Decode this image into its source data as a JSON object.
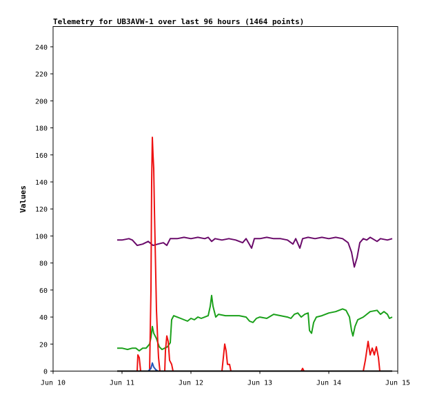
{
  "chart_data": {
    "type": "line",
    "title": "Telemetry for UB3AVW-1 over last 96 hours (1464 points)",
    "xlabel": "",
    "ylabel": "Values",
    "xlim": [
      10.0,
      15.0
    ],
    "ylim": [
      0,
      255
    ],
    "x_ticks": [
      {
        "value": 10,
        "label": "Jun 10"
      },
      {
        "value": 11,
        "label": "Jun 11"
      },
      {
        "value": 12,
        "label": "Jun 12"
      },
      {
        "value": 13,
        "label": "Jun 13"
      },
      {
        "value": 14,
        "label": "Jun 14"
      },
      {
        "value": 15,
        "label": "Jun 15"
      }
    ],
    "y_ticks": [
      0,
      20,
      40,
      60,
      80,
      100,
      120,
      140,
      160,
      180,
      200,
      220,
      240
    ],
    "grid": false,
    "series": [
      {
        "color": "#6a0a6a",
        "points": [
          [
            10.93,
            97
          ],
          [
            11.0,
            97
          ],
          [
            11.1,
            98
          ],
          [
            11.15,
            97
          ],
          [
            11.22,
            93
          ],
          [
            11.3,
            94
          ],
          [
            11.38,
            96
          ],
          [
            11.45,
            93
          ],
          [
            11.52,
            94
          ],
          [
            11.6,
            95
          ],
          [
            11.65,
            93
          ],
          [
            11.7,
            98
          ],
          [
            11.8,
            98
          ],
          [
            11.9,
            99
          ],
          [
            12.0,
            98
          ],
          [
            12.1,
            99
          ],
          [
            12.2,
            98
          ],
          [
            12.25,
            99
          ],
          [
            12.3,
            96
          ],
          [
            12.35,
            98
          ],
          [
            12.45,
            97
          ],
          [
            12.55,
            98
          ],
          [
            12.65,
            97
          ],
          [
            12.75,
            95
          ],
          [
            12.8,
            98
          ],
          [
            12.88,
            91
          ],
          [
            12.92,
            98
          ],
          [
            13.0,
            98
          ],
          [
            13.1,
            99
          ],
          [
            13.2,
            98
          ],
          [
            13.3,
            98
          ],
          [
            13.4,
            97
          ],
          [
            13.48,
            94
          ],
          [
            13.52,
            98
          ],
          [
            13.58,
            91
          ],
          [
            13.62,
            98
          ],
          [
            13.7,
            99
          ],
          [
            13.8,
            98
          ],
          [
            13.9,
            99
          ],
          [
            14.0,
            98
          ],
          [
            14.1,
            99
          ],
          [
            14.2,
            98
          ],
          [
            14.28,
            95
          ],
          [
            14.33,
            88
          ],
          [
            14.37,
            77
          ],
          [
            14.41,
            84
          ],
          [
            14.45,
            95
          ],
          [
            14.5,
            98
          ],
          [
            14.55,
            97
          ],
          [
            14.6,
            99
          ],
          [
            14.7,
            96
          ],
          [
            14.75,
            98
          ],
          [
            14.85,
            97
          ],
          [
            14.92,
            98
          ]
        ]
      },
      {
        "color": "#1aa01a",
        "points": [
          [
            10.93,
            17
          ],
          [
            11.0,
            17
          ],
          [
            11.08,
            16
          ],
          [
            11.15,
            17
          ],
          [
            11.2,
            17
          ],
          [
            11.25,
            15
          ],
          [
            11.3,
            17
          ],
          [
            11.35,
            17
          ],
          [
            11.4,
            20
          ],
          [
            11.42,
            25
          ],
          [
            11.44,
            33
          ],
          [
            11.46,
            28
          ],
          [
            11.5,
            24
          ],
          [
            11.54,
            18
          ],
          [
            11.58,
            16
          ],
          [
            11.62,
            17
          ],
          [
            11.66,
            18
          ],
          [
            11.7,
            21
          ],
          [
            11.72,
            38
          ],
          [
            11.75,
            41
          ],
          [
            11.8,
            40
          ],
          [
            11.85,
            39
          ],
          [
            11.9,
            38
          ],
          [
            11.95,
            37
          ],
          [
            12.0,
            39
          ],
          [
            12.05,
            38
          ],
          [
            12.1,
            40
          ],
          [
            12.15,
            39
          ],
          [
            12.2,
            40
          ],
          [
            12.25,
            41
          ],
          [
            12.28,
            48
          ],
          [
            12.3,
            56
          ],
          [
            12.32,
            48
          ],
          [
            12.36,
            40
          ],
          [
            12.4,
            42
          ],
          [
            12.5,
            41
          ],
          [
            12.6,
            41
          ],
          [
            12.7,
            41
          ],
          [
            12.8,
            40
          ],
          [
            12.85,
            37
          ],
          [
            12.9,
            36
          ],
          [
            12.95,
            39
          ],
          [
            13.0,
            40
          ],
          [
            13.1,
            39
          ],
          [
            13.2,
            42
          ],
          [
            13.3,
            41
          ],
          [
            13.4,
            40
          ],
          [
            13.45,
            39
          ],
          [
            13.5,
            42
          ],
          [
            13.55,
            43
          ],
          [
            13.6,
            40
          ],
          [
            13.65,
            42
          ],
          [
            13.7,
            43
          ],
          [
            13.72,
            30
          ],
          [
            13.75,
            28
          ],
          [
            13.78,
            36
          ],
          [
            13.82,
            40
          ],
          [
            13.9,
            41
          ],
          [
            14.0,
            43
          ],
          [
            14.1,
            44
          ],
          [
            14.2,
            46
          ],
          [
            14.25,
            45
          ],
          [
            14.3,
            40
          ],
          [
            14.33,
            30
          ],
          [
            14.35,
            26
          ],
          [
            14.38,
            33
          ],
          [
            14.42,
            38
          ],
          [
            14.5,
            40
          ],
          [
            14.6,
            44
          ],
          [
            14.7,
            45
          ],
          [
            14.75,
            42
          ],
          [
            14.8,
            44
          ],
          [
            14.85,
            42
          ],
          [
            14.88,
            39
          ],
          [
            14.92,
            40
          ]
        ]
      },
      {
        "color": "#ee1111",
        "points": [
          [
            10.93,
            0
          ],
          [
            11.22,
            0
          ],
          [
            11.23,
            12
          ],
          [
            11.25,
            10
          ],
          [
            11.27,
            0
          ],
          [
            11.4,
            0
          ],
          [
            11.42,
            60
          ],
          [
            11.43,
            140
          ],
          [
            11.44,
            173
          ],
          [
            11.45,
            160
          ],
          [
            11.46,
            150
          ],
          [
            11.47,
            120
          ],
          [
            11.48,
            95
          ],
          [
            11.5,
            45
          ],
          [
            11.52,
            20
          ],
          [
            11.53,
            10
          ],
          [
            11.55,
            0
          ],
          [
            11.62,
            0
          ],
          [
            11.63,
            15
          ],
          [
            11.65,
            26
          ],
          [
            11.67,
            22
          ],
          [
            11.69,
            8
          ],
          [
            11.72,
            5
          ],
          [
            11.74,
            0
          ],
          [
            12.45,
            0
          ],
          [
            12.47,
            10
          ],
          [
            12.49,
            20
          ],
          [
            12.51,
            15
          ],
          [
            12.53,
            5
          ],
          [
            12.56,
            5
          ],
          [
            12.58,
            0
          ],
          [
            13.6,
            0
          ],
          [
            13.62,
            2
          ],
          [
            13.64,
            0
          ],
          [
            14.5,
            0
          ],
          [
            14.53,
            8
          ],
          [
            14.55,
            15
          ],
          [
            14.57,
            22
          ],
          [
            14.6,
            12
          ],
          [
            14.63,
            17
          ],
          [
            14.66,
            12
          ],
          [
            14.69,
            18
          ],
          [
            14.72,
            10
          ],
          [
            14.74,
            0
          ],
          [
            14.92,
            0
          ]
        ]
      },
      {
        "color": "#2255bb",
        "points": [
          [
            11.38,
            0
          ],
          [
            11.42,
            2
          ],
          [
            11.44,
            6
          ],
          [
            11.46,
            3
          ],
          [
            11.49,
            1
          ],
          [
            11.52,
            0
          ]
        ]
      },
      {
        "color": "#000000",
        "points": [
          [
            10.93,
            0
          ],
          [
            14.92,
            0
          ]
        ]
      }
    ]
  }
}
